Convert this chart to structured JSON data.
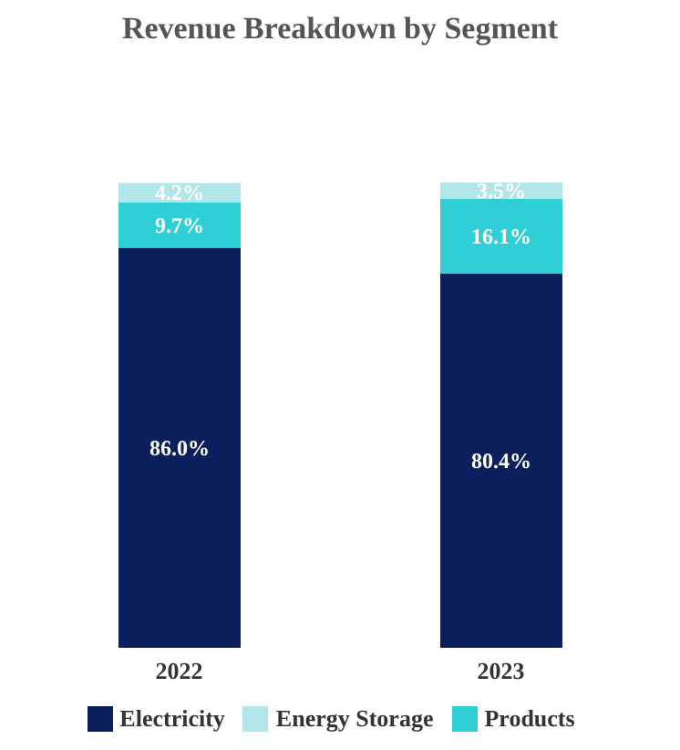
{
  "chart_data": {
    "type": "bar",
    "title": "Revenue Breakdown by Segment",
    "categories": [
      "2022",
      "2023"
    ],
    "stacked": true,
    "legend": "bottom",
    "series": [
      {
        "name": "Electricity",
        "color": "#0b1f5c",
        "values": [
          86.0,
          80.4
        ],
        "value_labels": [
          "86.0%",
          "80.4%"
        ]
      },
      {
        "name": "Products",
        "color": "#2fcfd5",
        "values": [
          9.7,
          16.1
        ],
        "value_labels": [
          "9.7%",
          "16.1%"
        ]
      },
      {
        "name": "Energy Storage",
        "color": "#b2e6e8",
        "values": [
          4.2,
          3.5
        ],
        "value_labels": [
          "4.2%",
          "3.5%"
        ]
      }
    ]
  }
}
